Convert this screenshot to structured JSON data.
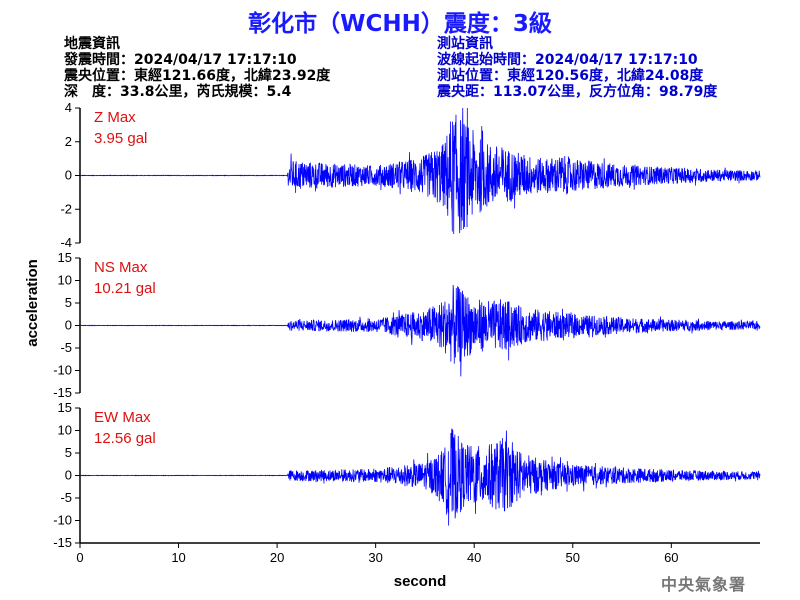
{
  "title": "彰化市（WCHH）震度：3級",
  "footer": "中央氣象署",
  "left_info": {
    "heading": "地震資訊",
    "origin_time": "發震時間：2024/04/17 17:17:10",
    "epicenter": "震央位置：東經121.66度，北緯23.92度",
    "depth_mag": "深　度：33.8公里，芮氏規模：5.4"
  },
  "right_info": {
    "heading": "測站資訊",
    "wave_start": "波線起始時間：2024/04/17 17:17:10",
    "station_loc": "測站位置：東經120.56度，北緯24.08度",
    "distance": "震央距：113.07公里，反方位角：98.79度"
  },
  "colors": {
    "trace": "#0000ff",
    "max_label": "#dd1111",
    "title": "#1a1aff"
  },
  "chart_data": {
    "type": "line",
    "xlabel": "second",
    "ylabel": "acceleration",
    "xlim": [
      0,
      69
    ],
    "xticks": [
      0,
      10,
      20,
      30,
      40,
      50,
      60
    ],
    "panels": [
      {
        "name": "Z",
        "max_label": "Z Max",
        "max_value": "3.95 gal",
        "ylim": [
          -4,
          4
        ],
        "yticks": [
          -4,
          -2,
          0,
          2,
          4
        ],
        "envelope": [
          [
            0,
            0.015
          ],
          [
            21,
            0.015
          ],
          [
            21.3,
            0.9
          ],
          [
            25,
            0.75
          ],
          [
            30,
            0.6
          ],
          [
            33,
            0.9
          ],
          [
            35,
            1.2
          ],
          [
            37,
            2.0
          ],
          [
            37.6,
            3.5
          ],
          [
            38.3,
            3.7
          ],
          [
            39,
            3.3
          ],
          [
            40,
            2.6
          ],
          [
            41,
            2.0
          ],
          [
            43,
            1.7
          ],
          [
            45,
            1.3
          ],
          [
            47,
            1.0
          ],
          [
            49,
            1.2
          ],
          [
            50,
            1.0
          ],
          [
            53,
            0.8
          ],
          [
            56,
            0.6
          ],
          [
            60,
            0.5
          ],
          [
            65,
            0.35
          ],
          [
            69,
            0.3
          ]
        ]
      },
      {
        "name": "NS",
        "max_label": "NS Max",
        "max_value": "10.21 gal",
        "ylim": [
          -15,
          15
        ],
        "yticks": [
          -15,
          -10,
          -5,
          0,
          5,
          10,
          15
        ],
        "envelope": [
          [
            0,
            0.05
          ],
          [
            21,
            0.05
          ],
          [
            21.3,
            1.2
          ],
          [
            25,
            1.3
          ],
          [
            30,
            1.5
          ],
          [
            35,
            3.5
          ],
          [
            37,
            6.0
          ],
          [
            38,
            9.5
          ],
          [
            39,
            7.5
          ],
          [
            40,
            6.0
          ],
          [
            42,
            5.5
          ],
          [
            43,
            6.0
          ],
          [
            45,
            4.0
          ],
          [
            47,
            3.5
          ],
          [
            50,
            2.5
          ],
          [
            55,
            1.8
          ],
          [
            60,
            1.3
          ],
          [
            65,
            1.0
          ],
          [
            69,
            0.9
          ]
        ]
      },
      {
        "name": "EW",
        "max_label": "EW Max",
        "max_value": "12.56 gal",
        "ylim": [
          -15,
          15
        ],
        "yticks": [
          -15,
          -10,
          -5,
          0,
          5,
          10,
          15
        ],
        "envelope": [
          [
            0,
            0.05
          ],
          [
            21,
            0.05
          ],
          [
            21.3,
            1.2
          ],
          [
            25,
            1.3
          ],
          [
            30,
            1.5
          ],
          [
            35,
            3.0
          ],
          [
            37,
            6.0
          ],
          [
            37.4,
            11.5
          ],
          [
            38,
            10.0
          ],
          [
            39,
            7.0
          ],
          [
            41,
            6.5
          ],
          [
            43,
            8.5
          ],
          [
            44,
            6.5
          ],
          [
            45,
            5.0
          ],
          [
            47,
            3.5
          ],
          [
            50,
            2.5
          ],
          [
            55,
            1.8
          ],
          [
            60,
            1.3
          ],
          [
            65,
            1.0
          ],
          [
            69,
            0.9
          ]
        ]
      }
    ]
  }
}
